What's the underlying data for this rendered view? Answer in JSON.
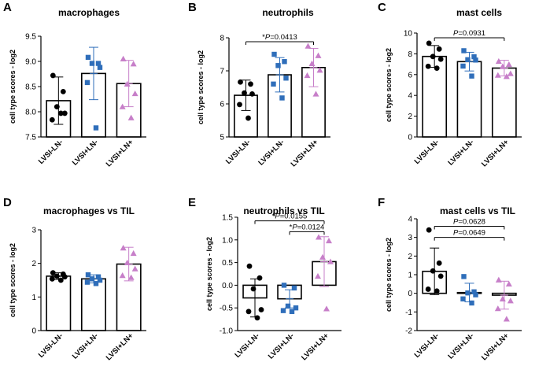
{
  "colors": {
    "group1": "#000000",
    "group2": "#2f6eba",
    "group3": "#c77fc9"
  },
  "chart_data": [
    {
      "panel": "A",
      "type": "bar",
      "title": "macrophages",
      "ylabel": "cell type scores - log2",
      "ylim": [
        7.5,
        9.5
      ],
      "yticks": [
        "7.5",
        "8.0",
        "8.5",
        "9.0",
        "9.5"
      ],
      "categories": [
        "LVSI-LN-",
        "LVSI+LN-",
        "LVSI+LN+"
      ],
      "means": [
        8.22,
        8.76,
        8.56
      ],
      "sd": [
        0.47,
        0.52,
        0.46
      ],
      "points": [
        [
          8.72,
          8.4,
          8.1,
          7.97,
          7.84,
          7.97
        ],
        [
          9.08,
          8.96,
          8.96,
          8.88,
          8.58,
          7.68
        ],
        [
          9.05,
          8.95,
          8.55,
          8.36,
          8.1,
          7.88
        ]
      ],
      "annotations": []
    },
    {
      "panel": "B",
      "type": "bar",
      "title": "neutrophils",
      "ylabel": "cell type scores - log2",
      "ylim": [
        5,
        8
      ],
      "yticks": [
        "5",
        "6",
        "7",
        "8"
      ],
      "categories": [
        "LVSI-LN-",
        "LVSI+LN-",
        "LVSI+LN+"
      ],
      "means": [
        6.26,
        6.88,
        7.1
      ],
      "sd": [
        0.46,
        0.52,
        0.58
      ],
      "points": [
        [
          6.66,
          6.6,
          6.33,
          6.3,
          5.98,
          5.57
        ],
        [
          7.5,
          7.28,
          7.16,
          6.78,
          6.6,
          6.18
        ],
        [
          7.75,
          7.46,
          7.22,
          7.02,
          6.86,
          6.3
        ]
      ],
      "annotations": [
        {
          "prefix": "*",
          "italic": "P",
          "value": "=0.0413",
          "from": 0,
          "to": 2,
          "y": 7.88
        }
      ]
    },
    {
      "panel": "C",
      "type": "bar",
      "title": "mast cells",
      "ylabel": "cell type scores - log2",
      "ylim": [
        0,
        10
      ],
      "yticks": [
        "0",
        "2",
        "4",
        "6",
        "8",
        "10"
      ],
      "categories": [
        "LVSI-LN-",
        "LVSI+LN-",
        "LVSI+LN+"
      ],
      "means": [
        7.75,
        7.25,
        6.63
      ],
      "sd": [
        1.05,
        0.9,
        0.75
      ],
      "points": [
        [
          9.02,
          8.46,
          7.74,
          7.48,
          6.8,
          6.62
        ],
        [
          8.3,
          7.72,
          7.44,
          7.4,
          6.82,
          5.86
        ],
        [
          7.28,
          6.98,
          6.78,
          6.1,
          5.94,
          5.82
        ]
      ],
      "annotations": [
        {
          "prefix": "",
          "italic": "P",
          "value": "=0.0931",
          "from": 0,
          "to": 2,
          "y": 9.55
        }
      ]
    },
    {
      "panel": "D",
      "type": "bar",
      "title": "macrophages vs TIL",
      "ylabel": "cell type scores - log2",
      "ylim": [
        0,
        3
      ],
      "yticks": [
        "0",
        "1",
        "2",
        "3"
      ],
      "categories": [
        "LVSI-LN-",
        "LVSI+LN-",
        "LVSI+LN+"
      ],
      "means": [
        1.62,
        1.54,
        1.98
      ],
      "sd": [
        0.1,
        0.12,
        0.5
      ],
      "points": [
        [
          1.72,
          1.68,
          1.62,
          1.6,
          1.54,
          1.5
        ],
        [
          1.66,
          1.6,
          1.54,
          1.5,
          1.44,
          1.4
        ],
        [
          2.46,
          2.3,
          2.02,
          1.84,
          1.64,
          1.58
        ]
      ],
      "annotations": []
    },
    {
      "panel": "E",
      "type": "bar",
      "title": "neutrophils vs TIL",
      "ylabel": "cell type scores - log2",
      "ylim": [
        -1,
        1.5
      ],
      "yticks": [
        "-1.0",
        "-0.5",
        "0.0",
        "0.5",
        "1.0",
        "1.5"
      ],
      "categories": [
        "LVSI-LN-",
        "LVSI+LN-",
        "LVSI+LN+"
      ],
      "means": [
        -0.28,
        -0.3,
        0.52
      ],
      "sd": [
        0.42,
        0.2,
        0.55
      ],
      "points": [
        [
          0.42,
          0.16,
          -0.08,
          -0.54,
          -0.58,
          -0.72
        ],
        [
          0.0,
          -0.06,
          -0.46,
          -0.5,
          -0.56,
          -0.58
        ],
        [
          1.06,
          0.98,
          0.62,
          0.52,
          0.2,
          -0.52
        ]
      ],
      "annotations": [
        {
          "prefix": "*",
          "italic": "P",
          "value": "=0.0155",
          "from": 0,
          "to": 2,
          "y": 1.42
        },
        {
          "prefix": "*",
          "italic": "P",
          "value": "=0.0124",
          "from": 1,
          "to": 2,
          "y": 1.18
        }
      ]
    },
    {
      "panel": "F",
      "type": "bar",
      "title": "mast cells vs TIL",
      "ylabel": "cell type scores - log2",
      "ylim": [
        -2,
        4
      ],
      "yticks": [
        "-2",
        "-1",
        "0",
        "1",
        "2",
        "3",
        "4"
      ],
      "categories": [
        "LVSI-LN-",
        "LVSI+LN-",
        "LVSI+LN+"
      ],
      "means": [
        1.18,
        0.04,
        -0.1
      ],
      "sd": [
        1.25,
        0.5,
        0.75
      ],
      "points": [
        [
          3.4,
          1.62,
          1.2,
          0.92,
          0.22,
          0.12
        ],
        [
          0.9,
          0.08,
          0.02,
          -0.08,
          -0.3,
          -0.52
        ],
        [
          0.72,
          0.5,
          -0.3,
          -0.4,
          -0.82,
          -1.38
        ]
      ],
      "annotations": [
        {
          "prefix": "",
          "italic": "P",
          "value": "=0.0628",
          "from": 0,
          "to": 2,
          "y": 3.6
        },
        {
          "prefix": "",
          "italic": "P",
          "value": "=0.0649",
          "from": 0,
          "to": 2,
          "y": 3.0
        }
      ]
    }
  ]
}
